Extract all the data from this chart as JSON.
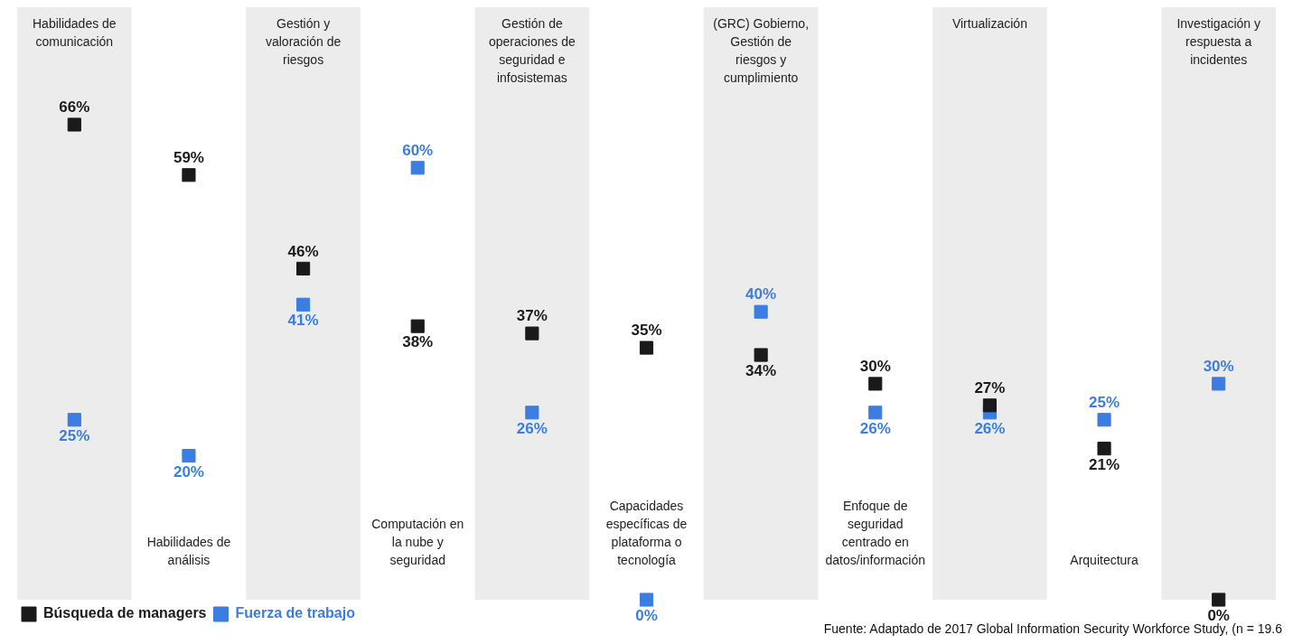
{
  "chart_data": {
    "type": "scatter",
    "categories": [
      "Habilidades de comunicación",
      "Habilidades de análisis",
      "Gestión y valoración de riesgos",
      "Computación en la nube y seguridad",
      "Gestión de operaciones de seguridad e infosistemas",
      "Capacidades específicas de plataforma o tecnología",
      "(GRC) Gobierno, Gestión de riesgos y cumplimiento",
      "Enfoque de seguridad centrado en datos/información",
      "Virtualización",
      "Arquitectura",
      "Investigación y respuesta a incidentes"
    ],
    "series": [
      {
        "name": "Búsqueda de managers",
        "color": "#1a1a1a",
        "values": [
          66,
          59,
          46,
          38,
          37,
          35,
          34,
          30,
          27,
          21,
          0
        ],
        "value_labels": [
          "66%",
          "59%",
          "46%",
          "38%",
          "37%",
          "35%",
          "34%",
          "30%",
          "27%",
          "21%",
          "0%"
        ]
      },
      {
        "name": "Fuerza de trabajo",
        "color": "#3b7de0",
        "values": [
          25,
          20,
          41,
          60,
          26,
          0,
          40,
          26,
          26,
          25,
          30
        ],
        "value_labels": [
          "25%",
          "20%",
          "41%",
          "60%",
          "26%",
          "0%",
          "40%",
          "26%",
          "26%",
          "25%",
          "30%"
        ]
      }
    ],
    "marker": "square",
    "legend": "bottom left",
    "grid": false,
    "annotations": [
      "Fuente: Adaptado de 2017 Global Information Security Workforce Study, (n = 19.6"
    ]
  }
}
